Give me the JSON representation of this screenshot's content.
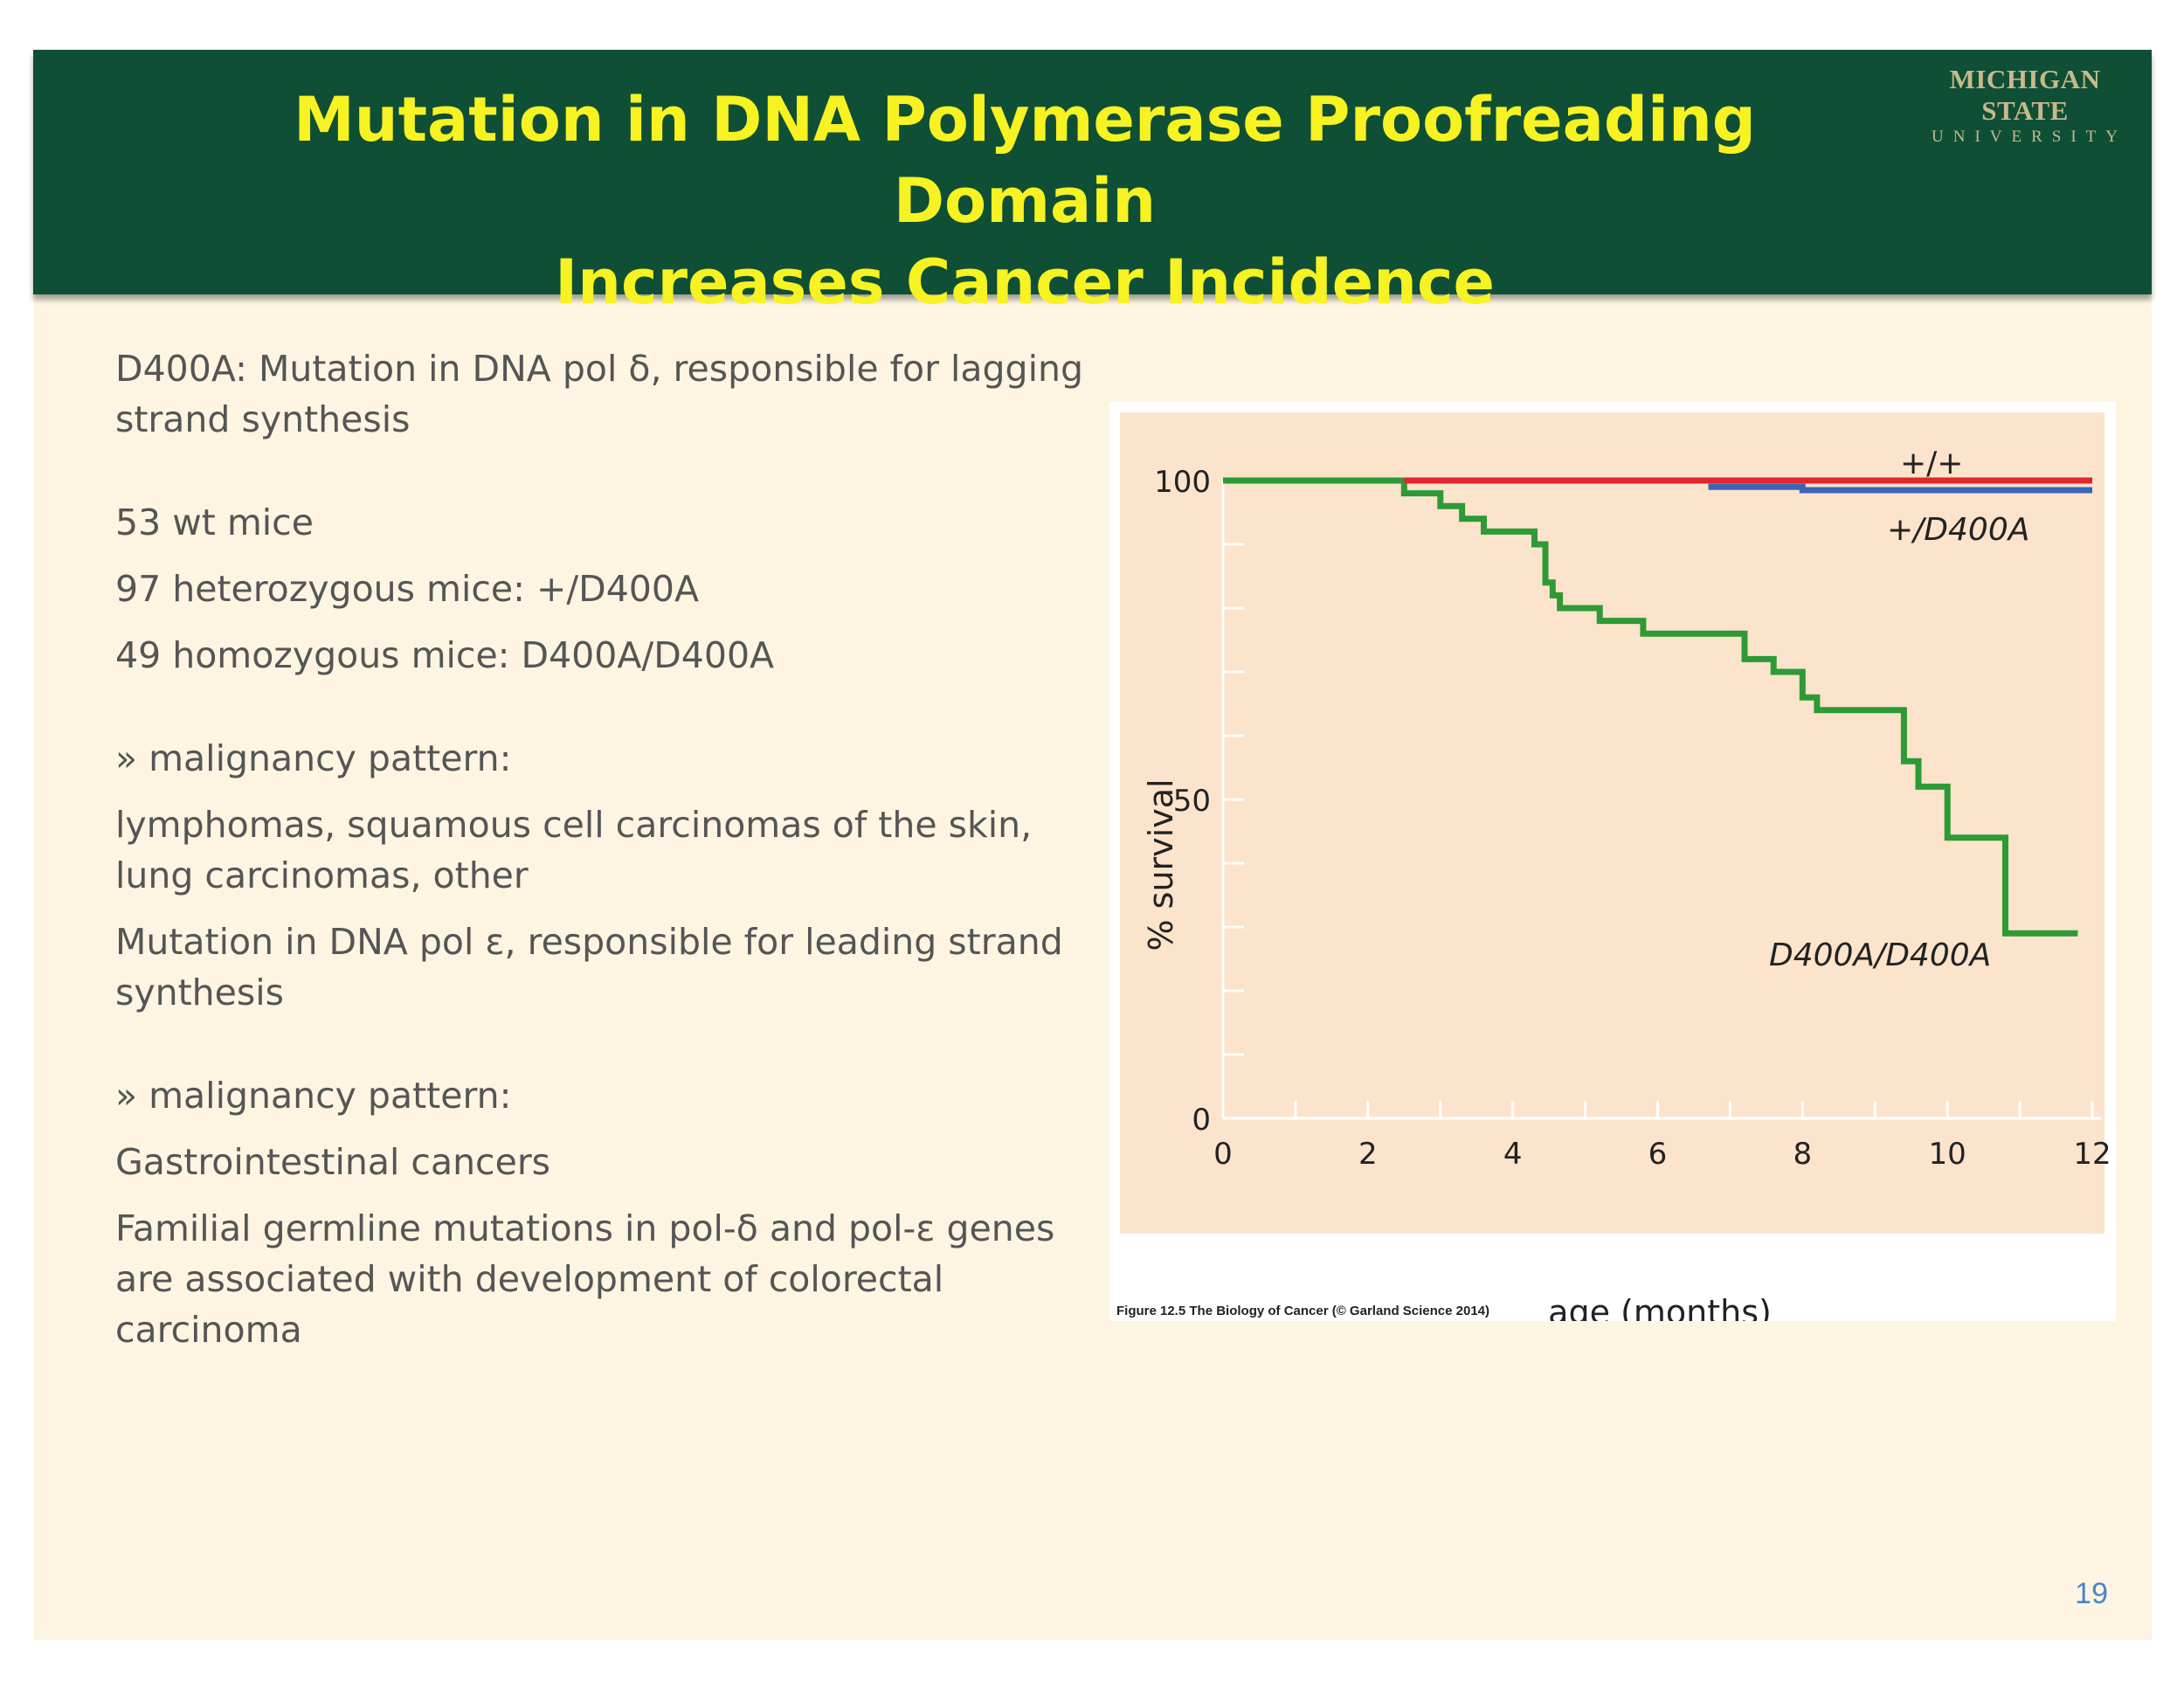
{
  "header": {
    "title_line1": "Mutation in DNA Polymerase Proofreading Domain",
    "title_line2": "Increases Cancer Incidence",
    "logo_line1": "MICHIGAN STATE",
    "logo_line2": "UNIVERSITY"
  },
  "body": {
    "p1": "D400A: Mutation in DNA pol δ, responsible for lagging strand synthesis",
    "p2": "53 wt mice",
    "p3": "97 heterozygous mice: +/D400A",
    "p4": "49 homozygous mice: D400A/D400A",
    "p5": "» malignancy pattern:",
    "p6": "lymphomas, squamous cell carcinomas of the skin, lung carcinomas, other",
    "p7": "Mutation in DNA pol ε, responsible for leading strand synthesis",
    "p8": "» malignancy pattern:",
    "p9": "Gastrointestinal cancers",
    "p10": "Familial germline mutations in pol-δ and pol-ε genes are associated with development of colorectal carcinoma"
  },
  "page_number": "19",
  "figure_caption": "Figure 12.5 The Biology of Cancer (© Garland Science 2014)",
  "chart_data": {
    "type": "line",
    "step": true,
    "xlabel": "age (months)",
    "ylabel": "% survival",
    "xlim": [
      0,
      12
    ],
    "ylim": [
      0,
      100
    ],
    "x_ticks": [
      "0",
      "2",
      "4",
      "6",
      "8",
      "10",
      "12"
    ],
    "y_ticks": [
      "0",
      "50",
      "100"
    ],
    "series": [
      {
        "name": "+/+",
        "color": "#e0262b",
        "points": [
          [
            2.5,
            100
          ],
          [
            12,
            100
          ]
        ]
      },
      {
        "name": "+/D400A",
        "color": "#3b63b8",
        "points": [
          [
            6.7,
            99
          ],
          [
            8,
            99
          ],
          [
            8,
            98.5
          ],
          [
            12,
            98.5
          ]
        ]
      },
      {
        "name": "D400A/D400A",
        "color": "#2e9a35",
        "points": [
          [
            0,
            100
          ],
          [
            2.5,
            100
          ],
          [
            2.5,
            98
          ],
          [
            3,
            98
          ],
          [
            3,
            96
          ],
          [
            3.3,
            96
          ],
          [
            3.3,
            94
          ],
          [
            3.6,
            94
          ],
          [
            3.6,
            92
          ],
          [
            4.3,
            92
          ],
          [
            4.3,
            90
          ],
          [
            4.45,
            90
          ],
          [
            4.45,
            84
          ],
          [
            4.55,
            84
          ],
          [
            4.55,
            82
          ],
          [
            4.65,
            82
          ],
          [
            4.65,
            80
          ],
          [
            5.2,
            80
          ],
          [
            5.2,
            78
          ],
          [
            5.8,
            78
          ],
          [
            5.8,
            76
          ],
          [
            7.2,
            76
          ],
          [
            7.2,
            72
          ],
          [
            7.6,
            72
          ],
          [
            7.6,
            70
          ],
          [
            8,
            70
          ],
          [
            8,
            66
          ],
          [
            8.2,
            66
          ],
          [
            8.2,
            64
          ],
          [
            9.4,
            64
          ],
          [
            9.4,
            56
          ],
          [
            9.6,
            56
          ],
          [
            9.6,
            52
          ],
          [
            10,
            52
          ],
          [
            10,
            44
          ],
          [
            10.8,
            44
          ],
          [
            10.8,
            29
          ],
          [
            11.8,
            29
          ]
        ]
      }
    ],
    "legend": "inline labels next to lines"
  }
}
